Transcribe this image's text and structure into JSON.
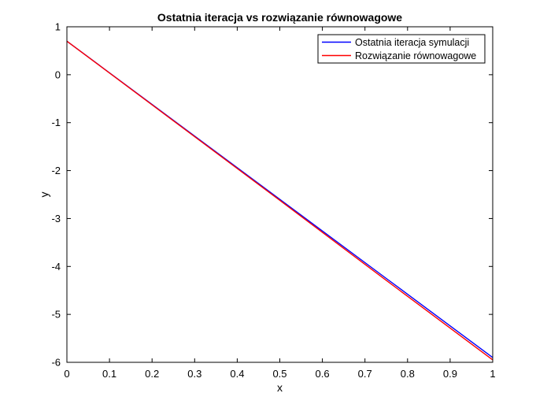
{
  "chart_data": {
    "type": "line",
    "title": "Ostatnia iteracja vs rozwiązanie równowagowe",
    "xlabel": "x",
    "ylabel": "y",
    "xlim": [
      0,
      1
    ],
    "ylim": [
      -6,
      1
    ],
    "xticks": [
      0,
      0.1,
      0.2,
      0.3,
      0.4,
      0.5,
      0.6,
      0.7,
      0.8,
      0.9,
      1
    ],
    "xtick_labels": [
      "0",
      "0.1",
      "0.2",
      "0.3",
      "0.4",
      "0.5",
      "0.6",
      "0.7",
      "0.8",
      "0.9",
      "1"
    ],
    "yticks": [
      1,
      0,
      -1,
      -2,
      -3,
      -4,
      -5,
      -6
    ],
    "ytick_labels": [
      "1",
      "0",
      "-1",
      "-2",
      "-3",
      "-4",
      "-5",
      "-6"
    ],
    "grid": false,
    "legend_position": "top-right",
    "series": [
      {
        "name": "Ostatnia iteracja symulacji",
        "color": "#0000ff",
        "x": [
          0,
          0.25,
          0.5,
          0.75,
          1
        ],
        "y": [
          0.7,
          -0.95,
          -2.6,
          -4.25,
          -5.9
        ]
      },
      {
        "name": "Rozwiązanie równowagowe",
        "color": "#ff0000",
        "x": [
          0,
          0.25,
          0.5,
          0.75,
          1
        ],
        "y": [
          0.7,
          -0.96,
          -2.62,
          -4.29,
          -5.95
        ]
      }
    ]
  }
}
